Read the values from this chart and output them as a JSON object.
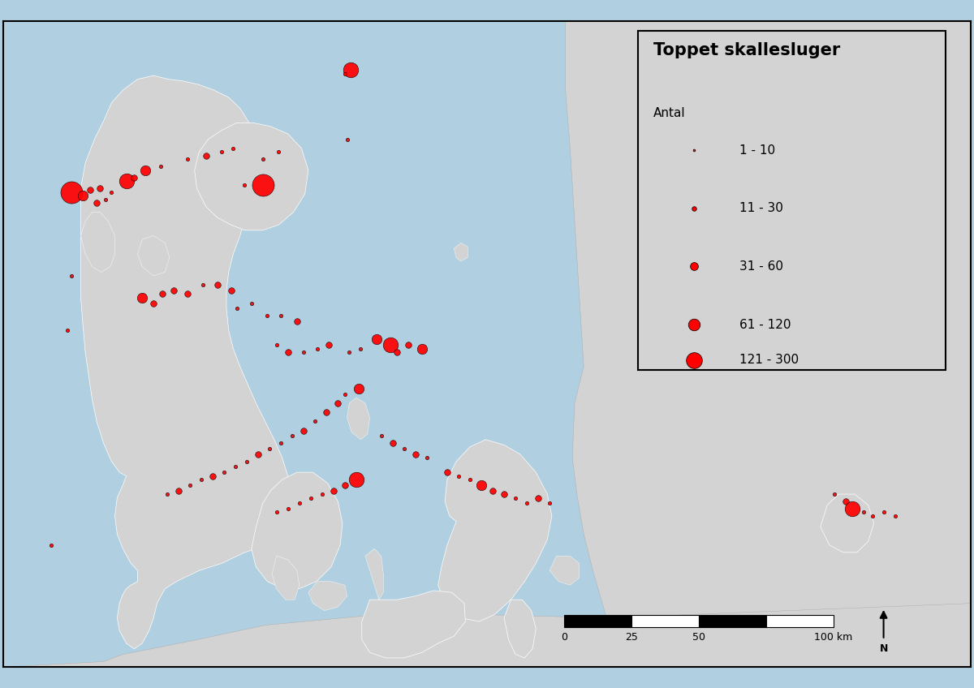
{
  "title": "Toppet skallesluger",
  "legend_subtitle": "Antal",
  "legend_entries": [
    {
      "label": "1 - 10",
      "marker_size": 4
    },
    {
      "label": "11 - 30",
      "marker_size": 9
    },
    {
      "label": "31 - 60",
      "marker_size": 16
    },
    {
      "label": "61 - 120",
      "marker_size": 24
    },
    {
      "label": "121 - 300",
      "marker_size": 34
    }
  ],
  "dot_color": "#ff0000",
  "dot_edgecolor": "#000000",
  "background_color": "#b0cfe0",
  "land_color": "#d3d3d3",
  "legend_bg": "#d3d3d3",
  "map_xlim": [
    7.5,
    16.0
  ],
  "map_ylim": [
    54.45,
    58.0
  ],
  "points": [
    {
      "lon": 8.1,
      "lat": 57.06,
      "size": 34
    },
    {
      "lon": 8.2,
      "lat": 57.04,
      "size": 16
    },
    {
      "lon": 8.26,
      "lat": 57.07,
      "size": 9
    },
    {
      "lon": 8.35,
      "lat": 57.08,
      "size": 9
    },
    {
      "lon": 8.32,
      "lat": 57.0,
      "size": 9
    },
    {
      "lon": 8.4,
      "lat": 57.02,
      "size": 4
    },
    {
      "lon": 8.45,
      "lat": 57.06,
      "size": 4
    },
    {
      "lon": 8.58,
      "lat": 57.12,
      "size": 24
    },
    {
      "lon": 8.65,
      "lat": 57.14,
      "size": 9
    },
    {
      "lon": 8.75,
      "lat": 57.18,
      "size": 16
    },
    {
      "lon": 8.88,
      "lat": 57.2,
      "size": 4
    },
    {
      "lon": 9.12,
      "lat": 57.24,
      "size": 4
    },
    {
      "lon": 9.28,
      "lat": 57.26,
      "size": 9
    },
    {
      "lon": 9.42,
      "lat": 57.28,
      "size": 4
    },
    {
      "lon": 9.52,
      "lat": 57.3,
      "size": 4
    },
    {
      "lon": 9.78,
      "lat": 57.1,
      "size": 34
    },
    {
      "lon": 9.62,
      "lat": 57.1,
      "size": 4
    },
    {
      "lon": 9.78,
      "lat": 57.24,
      "size": 4
    },
    {
      "lon": 9.92,
      "lat": 57.28,
      "size": 4
    },
    {
      "lon": 10.55,
      "lat": 57.73,
      "size": 24
    },
    {
      "lon": 10.5,
      "lat": 57.71,
      "size": 4
    },
    {
      "lon": 8.1,
      "lat": 56.6,
      "size": 4
    },
    {
      "lon": 8.06,
      "lat": 56.3,
      "size": 4
    },
    {
      "lon": 8.72,
      "lat": 56.48,
      "size": 16
    },
    {
      "lon": 8.82,
      "lat": 56.45,
      "size": 9
    },
    {
      "lon": 8.9,
      "lat": 56.5,
      "size": 9
    },
    {
      "lon": 9.0,
      "lat": 56.52,
      "size": 9
    },
    {
      "lon": 9.12,
      "lat": 56.5,
      "size": 9
    },
    {
      "lon": 9.25,
      "lat": 56.55,
      "size": 4
    },
    {
      "lon": 9.38,
      "lat": 56.55,
      "size": 9
    },
    {
      "lon": 9.5,
      "lat": 56.52,
      "size": 9
    },
    {
      "lon": 9.55,
      "lat": 56.42,
      "size": 4
    },
    {
      "lon": 9.68,
      "lat": 56.45,
      "size": 4
    },
    {
      "lon": 9.82,
      "lat": 56.38,
      "size": 4
    },
    {
      "lon": 9.94,
      "lat": 56.38,
      "size": 4
    },
    {
      "lon": 10.08,
      "lat": 56.35,
      "size": 9
    },
    {
      "lon": 9.9,
      "lat": 56.22,
      "size": 4
    },
    {
      "lon": 10.0,
      "lat": 56.18,
      "size": 9
    },
    {
      "lon": 10.14,
      "lat": 56.18,
      "size": 4
    },
    {
      "lon": 10.26,
      "lat": 56.2,
      "size": 4
    },
    {
      "lon": 10.36,
      "lat": 56.22,
      "size": 9
    },
    {
      "lon": 10.54,
      "lat": 56.18,
      "size": 4
    },
    {
      "lon": 10.64,
      "lat": 56.2,
      "size": 4
    },
    {
      "lon": 10.78,
      "lat": 56.25,
      "size": 16
    },
    {
      "lon": 10.9,
      "lat": 56.22,
      "size": 24
    },
    {
      "lon": 10.96,
      "lat": 56.18,
      "size": 9
    },
    {
      "lon": 11.06,
      "lat": 56.22,
      "size": 9
    },
    {
      "lon": 11.18,
      "lat": 56.2,
      "size": 16
    },
    {
      "lon": 10.62,
      "lat": 55.98,
      "size": 16
    },
    {
      "lon": 10.5,
      "lat": 55.95,
      "size": 4
    },
    {
      "lon": 10.44,
      "lat": 55.9,
      "size": 9
    },
    {
      "lon": 10.34,
      "lat": 55.85,
      "size": 9
    },
    {
      "lon": 10.24,
      "lat": 55.8,
      "size": 4
    },
    {
      "lon": 10.14,
      "lat": 55.75,
      "size": 9
    },
    {
      "lon": 10.04,
      "lat": 55.72,
      "size": 4
    },
    {
      "lon": 9.94,
      "lat": 55.68,
      "size": 4
    },
    {
      "lon": 9.84,
      "lat": 55.65,
      "size": 4
    },
    {
      "lon": 9.74,
      "lat": 55.62,
      "size": 9
    },
    {
      "lon": 9.64,
      "lat": 55.58,
      "size": 4
    },
    {
      "lon": 9.54,
      "lat": 55.55,
      "size": 4
    },
    {
      "lon": 9.44,
      "lat": 55.52,
      "size": 4
    },
    {
      "lon": 9.34,
      "lat": 55.5,
      "size": 9
    },
    {
      "lon": 9.24,
      "lat": 55.48,
      "size": 4
    },
    {
      "lon": 9.14,
      "lat": 55.45,
      "size": 4
    },
    {
      "lon": 9.04,
      "lat": 55.42,
      "size": 9
    },
    {
      "lon": 8.94,
      "lat": 55.4,
      "size": 4
    },
    {
      "lon": 10.82,
      "lat": 55.72,
      "size": 4
    },
    {
      "lon": 10.92,
      "lat": 55.68,
      "size": 9
    },
    {
      "lon": 11.02,
      "lat": 55.65,
      "size": 4
    },
    {
      "lon": 11.12,
      "lat": 55.62,
      "size": 9
    },
    {
      "lon": 11.22,
      "lat": 55.6,
      "size": 4
    },
    {
      "lon": 11.4,
      "lat": 55.52,
      "size": 9
    },
    {
      "lon": 11.5,
      "lat": 55.5,
      "size": 4
    },
    {
      "lon": 11.6,
      "lat": 55.48,
      "size": 4
    },
    {
      "lon": 11.7,
      "lat": 55.45,
      "size": 16
    },
    {
      "lon": 11.8,
      "lat": 55.42,
      "size": 9
    },
    {
      "lon": 11.9,
      "lat": 55.4,
      "size": 9
    },
    {
      "lon": 12.0,
      "lat": 55.38,
      "size": 4
    },
    {
      "lon": 12.1,
      "lat": 55.35,
      "size": 4
    },
    {
      "lon": 12.2,
      "lat": 55.38,
      "size": 9
    },
    {
      "lon": 12.3,
      "lat": 55.35,
      "size": 4
    },
    {
      "lon": 14.8,
      "lat": 55.4,
      "size": 4
    },
    {
      "lon": 14.9,
      "lat": 55.36,
      "size": 9
    },
    {
      "lon": 14.96,
      "lat": 55.32,
      "size": 24
    },
    {
      "lon": 15.06,
      "lat": 55.3,
      "size": 4
    },
    {
      "lon": 15.14,
      "lat": 55.28,
      "size": 4
    },
    {
      "lon": 15.24,
      "lat": 55.3,
      "size": 4
    },
    {
      "lon": 15.34,
      "lat": 55.28,
      "size": 4
    },
    {
      "lon": 10.6,
      "lat": 55.48,
      "size": 24
    },
    {
      "lon": 10.5,
      "lat": 55.45,
      "size": 9
    },
    {
      "lon": 10.4,
      "lat": 55.42,
      "size": 9
    },
    {
      "lon": 10.3,
      "lat": 55.4,
      "size": 4
    },
    {
      "lon": 10.2,
      "lat": 55.38,
      "size": 4
    },
    {
      "lon": 10.1,
      "lat": 55.35,
      "size": 4
    },
    {
      "lon": 10.0,
      "lat": 55.32,
      "size": 4
    },
    {
      "lon": 9.9,
      "lat": 55.3,
      "size": 4
    },
    {
      "lon": 7.92,
      "lat": 55.12,
      "size": 4
    },
    {
      "lon": 10.52,
      "lat": 57.35,
      "size": 4
    }
  ]
}
